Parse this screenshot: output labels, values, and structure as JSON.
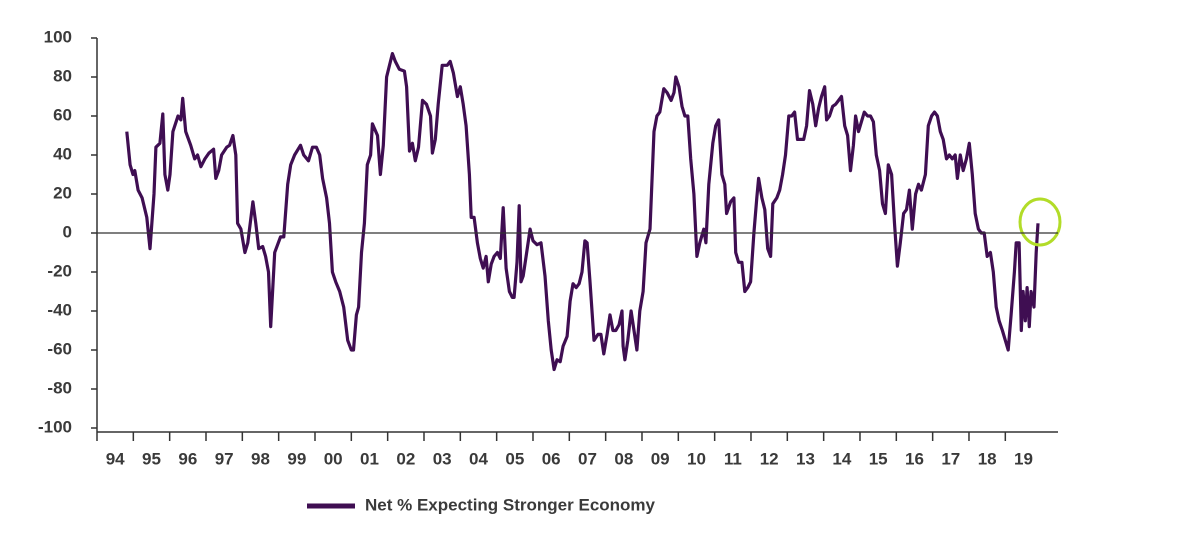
{
  "chart_data": {
    "type": "line",
    "series": [
      {
        "name": "Net % Expecting Stronger Economy",
        "color": "#3f0e52",
        "x": [
          1994.82,
          1994.91,
          1994.99,
          1995.04,
          1995.13,
          1995.24,
          1995.37,
          1995.46,
          1995.57,
          1995.62,
          1995.73,
          1995.81,
          1995.87,
          1995.95,
          1996.01,
          1996.09,
          1996.23,
          1996.31,
          1996.36,
          1996.44,
          1996.58,
          1996.69,
          1996.77,
          1996.86,
          1996.97,
          1997.08,
          1997.21,
          1997.27,
          1997.35,
          1997.43,
          1997.57,
          1997.65,
          1997.74,
          1997.82,
          1997.87,
          1997.96,
          1998.07,
          1998.15,
          1998.29,
          1998.37,
          1998.45,
          1998.56,
          1998.64,
          1998.72,
          1998.78,
          1998.89,
          1999.05,
          1999.14,
          1999.25,
          1999.33,
          1999.44,
          1999.6,
          1999.69,
          1999.82,
          1999.93,
          2000.04,
          2000.13,
          2000.21,
          2000.32,
          2000.4,
          2000.48,
          2000.57,
          2000.68,
          2000.79,
          2000.9,
          2001.0,
          2001.06,
          2001.14,
          2001.2,
          2001.28,
          2001.36,
          2001.44,
          2001.53,
          2001.58,
          2001.72,
          2001.8,
          2001.88,
          2001.97,
          2002.05,
          2002.13,
          2002.21,
          2002.32,
          2002.46,
          2002.52,
          2002.6,
          2002.68,
          2002.76,
          2002.85,
          2002.96,
          2003.07,
          2003.18,
          2003.23,
          2003.31,
          2003.39,
          2003.5,
          2003.64,
          2003.72,
          2003.81,
          2003.92,
          2004.0,
          2004.08,
          2004.16,
          2004.25,
          2004.3,
          2004.38,
          2004.47,
          2004.55,
          2004.63,
          2004.71,
          2004.77,
          2004.85,
          2004.93,
          2005.02,
          2005.1,
          2005.18,
          2005.26,
          2005.35,
          2005.43,
          2005.48,
          2005.56,
          2005.62,
          2005.67,
          2005.73,
          2005.81,
          2005.92,
          2006.0,
          2006.11,
          2006.22,
          2006.33,
          2006.42,
          2006.5,
          2006.58,
          2006.66,
          2006.75,
          2006.83,
          2006.94,
          2007.02,
          2007.1,
          2007.19,
          2007.27,
          2007.35,
          2007.43,
          2007.49,
          2007.57,
          2007.68,
          2007.79,
          2007.87,
          2007.95,
          2008.04,
          2008.12,
          2008.2,
          2008.28,
          2008.37,
          2008.45,
          2008.48,
          2008.53,
          2008.61,
          2008.7,
          2008.78,
          2008.86,
          2008.94,
          2009.03,
          2009.11,
          2009.22,
          2009.33,
          2009.41,
          2009.49,
          2009.6,
          2009.69,
          2009.8,
          2009.88,
          2009.93,
          2010.02,
          2010.1,
          2010.18,
          2010.26,
          2010.34,
          2010.43,
          2010.51,
          2010.59,
          2010.7,
          2010.76,
          2010.84,
          2010.95,
          2011.03,
          2011.11,
          2011.2,
          2011.28,
          2011.33,
          2011.44,
          2011.53,
          2011.58,
          2011.66,
          2011.75,
          2011.83,
          2011.91,
          2011.99,
          2012.08,
          2012.16,
          2012.21,
          2012.3,
          2012.38,
          2012.46,
          2012.54,
          2012.6,
          2012.71,
          2012.79,
          2012.87,
          2012.95,
          2013.04,
          2013.12,
          2013.2,
          2013.28,
          2013.37,
          2013.45,
          2013.53,
          2013.61,
          2013.7,
          2013.78,
          2013.86,
          2013.94,
          2014.03,
          2014.08,
          2014.16,
          2014.25,
          2014.33,
          2014.41,
          2014.49,
          2014.58,
          2014.66,
          2014.74,
          2014.82,
          2014.88,
          2014.96,
          2015.04,
          2015.12,
          2015.21,
          2015.29,
          2015.37,
          2015.45,
          2015.54,
          2015.62,
          2015.7,
          2015.78,
          2015.87,
          2015.95,
          2016.03,
          2016.11,
          2016.2,
          2016.28,
          2016.36,
          2016.44,
          2016.53,
          2016.61,
          2016.69,
          2016.8,
          2016.88,
          2016.97,
          2017.05,
          2017.13,
          2017.21,
          2017.29,
          2017.38,
          2017.46,
          2017.54,
          2017.62,
          2017.68,
          2017.76,
          2017.84,
          2017.93,
          2018.01,
          2018.09,
          2018.17,
          2018.26,
          2018.34,
          2018.42,
          2018.5,
          2018.59,
          2018.67,
          2018.75,
          2018.83,
          2018.92,
          2019.0,
          2019.08,
          2019.16,
          2019.25,
          2019.3,
          2019.38,
          2019.44,
          2019.49,
          2019.55,
          2019.6,
          2019.66,
          2019.71,
          2019.79,
          2019.85,
          2019.9
        ],
        "values": [
          52,
          35,
          30,
          32,
          22,
          18,
          8,
          -8,
          20,
          44,
          46,
          61,
          30,
          22,
          30,
          52,
          60,
          58,
          69,
          52,
          45,
          38,
          40,
          34,
          38,
          41,
          43,
          28,
          32,
          40,
          44,
          45,
          50,
          40,
          5,
          2,
          -10,
          -5,
          16,
          5,
          -8,
          -7,
          -12,
          -20,
          -48,
          -10,
          -2,
          -2,
          25,
          35,
          40,
          45,
          40,
          37,
          44,
          44,
          40,
          28,
          18,
          5,
          -20,
          -25,
          -30,
          -38,
          -55,
          -60,
          -60,
          -42,
          -38,
          -10,
          5,
          35,
          40,
          56,
          50,
          30,
          45,
          80,
          86,
          92,
          88,
          84,
          83,
          75,
          42,
          46,
          37,
          44,
          68,
          66,
          60,
          41,
          48,
          66,
          86,
          86,
          88,
          82,
          70,
          75,
          66,
          55,
          30,
          8,
          8,
          -5,
          -13,
          -18,
          -12,
          -25,
          -16,
          -12,
          -10,
          -13,
          13,
          -18,
          -30,
          -33,
          -33,
          -15,
          14,
          -25,
          -22,
          -12,
          2,
          -4,
          -6,
          -5,
          -22,
          -45,
          -60,
          -70,
          -65,
          -66,
          -58,
          -53,
          -35,
          -26,
          -28,
          -26,
          -20,
          -4,
          -5,
          -25,
          -55,
          -52,
          -52,
          -62,
          -52,
          -42,
          -50,
          -50,
          -47,
          -40,
          -58,
          -65,
          -55,
          -40,
          -50,
          -60,
          -40,
          -30,
          -5,
          2,
          52,
          60,
          62,
          74,
          72,
          68,
          72,
          80,
          75,
          65,
          60,
          60,
          38,
          20,
          -12,
          -5,
          2,
          -5,
          25,
          46,
          55,
          58,
          30,
          25,
          10,
          16,
          18,
          -10,
          -15,
          -15,
          -30,
          -28,
          -25,
          0,
          18,
          28,
          18,
          12,
          -8,
          -12,
          15,
          18,
          22,
          30,
          40,
          60,
          60,
          62,
          48,
          48,
          48,
          55,
          73,
          66,
          55,
          64,
          70,
          75,
          58,
          60,
          65,
          66,
          68,
          70,
          55,
          50,
          32,
          45,
          60,
          52,
          57,
          62,
          60,
          60,
          57,
          40,
          32,
          15,
          10,
          35,
          30,
          5,
          -17,
          -5,
          10,
          12,
          22,
          2,
          20,
          25,
          22,
          30,
          55,
          60,
          62,
          60,
          52,
          48,
          38,
          40,
          38,
          40,
          28,
          40,
          32,
          38,
          46,
          30,
          10,
          2,
          0,
          0,
          -12,
          -10,
          -20,
          -38,
          -45,
          -50,
          -55,
          -60,
          -42,
          -20,
          -5,
          -5,
          -50,
          -30,
          -45,
          -28,
          -48,
          -30,
          -38,
          -10,
          5
        ]
      }
    ],
    "xlim": [
      1994,
      2020.45
    ],
    "xticks": [
      {
        "value": 1994.5,
        "label": "94"
      },
      {
        "value": 1995.5,
        "label": "95"
      },
      {
        "value": 1996.5,
        "label": "96"
      },
      {
        "value": 1997.5,
        "label": "97"
      },
      {
        "value": 1998.5,
        "label": "98"
      },
      {
        "value": 1999.5,
        "label": "99"
      },
      {
        "value": 2000.5,
        "label": "00"
      },
      {
        "value": 2001.5,
        "label": "01"
      },
      {
        "value": 2002.5,
        "label": "02"
      },
      {
        "value": 2003.5,
        "label": "03"
      },
      {
        "value": 2004.5,
        "label": "04"
      },
      {
        "value": 2005.5,
        "label": "05"
      },
      {
        "value": 2006.5,
        "label": "06"
      },
      {
        "value": 2007.5,
        "label": "07"
      },
      {
        "value": 2008.5,
        "label": "08"
      },
      {
        "value": 2009.5,
        "label": "09"
      },
      {
        "value": 2010.5,
        "label": "10"
      },
      {
        "value": 2011.5,
        "label": "11"
      },
      {
        "value": 2012.5,
        "label": "12"
      },
      {
        "value": 2013.5,
        "label": "13"
      },
      {
        "value": 2014.5,
        "label": "14"
      },
      {
        "value": 2015.5,
        "label": "15"
      },
      {
        "value": 2016.5,
        "label": "16"
      },
      {
        "value": 2017.5,
        "label": "17"
      },
      {
        "value": 2018.5,
        "label": "18"
      },
      {
        "value": 2019.5,
        "label": "19"
      }
    ],
    "ylim": [
      -100,
      100
    ],
    "yticks": [
      -100,
      -80,
      -60,
      -40,
      -20,
      0,
      20,
      40,
      60,
      80,
      100
    ],
    "grid": false,
    "legend": "bottom"
  }
}
